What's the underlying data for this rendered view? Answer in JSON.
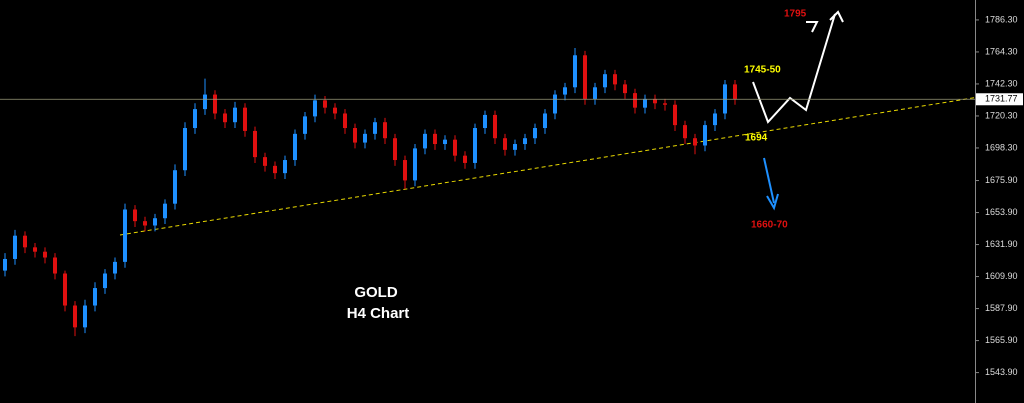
{
  "chart_data": {
    "type": "candlestick",
    "title": "GOLD",
    "subtitle": "H4 Chart",
    "up_color": "#1e90ff",
    "down_color": "#e01010",
    "open": [
      1614,
      1622,
      1638,
      1630,
      1627,
      1623,
      1612,
      1590,
      1575,
      1590,
      1602,
      1612,
      1620,
      1656,
      1648,
      1645,
      1650,
      1660,
      1683,
      1712,
      1725,
      1735,
      1722,
      1716,
      1726,
      1710,
      1692,
      1686,
      1681,
      1690,
      1708,
      1720,
      1731,
      1726,
      1722,
      1712,
      1702,
      1708,
      1716,
      1705,
      1690,
      1676,
      1698,
      1708,
      1701,
      1704,
      1693,
      1688,
      1712,
      1721,
      1705,
      1697,
      1701,
      1705,
      1712,
      1722,
      1735,
      1740,
      1762,
      1732,
      1740,
      1749,
      1742,
      1736,
      1726,
      1732,
      1729,
      1728,
      1714,
      1705,
      1700,
      1714,
      1722,
      1742
    ],
    "high": [
      1626,
      1642,
      1641,
      1633,
      1630,
      1626,
      1614,
      1593,
      1594,
      1606,
      1615,
      1623,
      1660,
      1659,
      1651,
      1653,
      1663,
      1687,
      1716,
      1729,
      1746,
      1738,
      1725,
      1730,
      1729,
      1713,
      1695,
      1689,
      1693,
      1711,
      1723,
      1735,
      1734,
      1729,
      1725,
      1715,
      1711,
      1719,
      1719,
      1708,
      1693,
      1701,
      1711,
      1711,
      1707,
      1707,
      1696,
      1715,
      1724,
      1724,
      1708,
      1704,
      1708,
      1715,
      1725,
      1738,
      1743,
      1767,
      1765,
      1743,
      1752,
      1752,
      1745,
      1739,
      1735,
      1735,
      1732,
      1731,
      1717,
      1708,
      1717,
      1725,
      1745,
      1745
    ],
    "low": [
      1610,
      1618,
      1626,
      1623,
      1619,
      1608,
      1586,
      1569,
      1571,
      1586,
      1598,
      1608,
      1616,
      1644,
      1641,
      1641,
      1646,
      1656,
      1679,
      1708,
      1721,
      1718,
      1712,
      1712,
      1706,
      1688,
      1682,
      1677,
      1677,
      1686,
      1704,
      1716,
      1722,
      1718,
      1708,
      1698,
      1698,
      1704,
      1701,
      1686,
      1670,
      1672,
      1694,
      1697,
      1697,
      1689,
      1684,
      1684,
      1708,
      1701,
      1693,
      1693,
      1697,
      1701,
      1708,
      1718,
      1731,
      1736,
      1728,
      1728,
      1736,
      1738,
      1732,
      1722,
      1722,
      1725,
      1724,
      1710,
      1701,
      1694,
      1696,
      1710,
      1718,
      1728
    ],
    "close": [
      1622,
      1638,
      1630,
      1627,
      1623,
      1612,
      1590,
      1575,
      1590,
      1602,
      1612,
      1620,
      1656,
      1648,
      1645,
      1650,
      1660,
      1683,
      1712,
      1725,
      1735,
      1722,
      1716,
      1726,
      1710,
      1692,
      1686,
      1681,
      1690,
      1708,
      1720,
      1731,
      1726,
      1722,
      1712,
      1702,
      1708,
      1716,
      1705,
      1690,
      1676,
      1698,
      1708,
      1701,
      1704,
      1693,
      1688,
      1712,
      1721,
      1705,
      1697,
      1701,
      1705,
      1712,
      1722,
      1735,
      1740,
      1762,
      1732,
      1740,
      1749,
      1742,
      1736,
      1726,
      1732,
      1729,
      1728,
      1714,
      1705,
      1700,
      1714,
      1722,
      1742,
      1732
    ],
    "ylim": [
      1523,
      1800
    ],
    "yticks": [
      {
        "value": 1786.3,
        "label": "1786.30"
      },
      {
        "value": 1764.3,
        "label": "1764.30"
      },
      {
        "value": 1742.3,
        "label": "1742.30"
      },
      {
        "value": 1720.3,
        "label": "1720.30"
      },
      {
        "value": 1698.3,
        "label": "1698.30"
      },
      {
        "value": 1675.9,
        "label": "1675.90"
      },
      {
        "value": 1653.9,
        "label": "1653.90"
      },
      {
        "value": 1631.9,
        "label": "1631.90"
      },
      {
        "value": 1609.9,
        "label": "1609.90"
      },
      {
        "value": 1587.9,
        "label": "1587.90"
      },
      {
        "value": 1565.9,
        "label": "1565.90"
      },
      {
        "value": 1543.9,
        "label": "1543.90"
      }
    ],
    "current_price": {
      "value": 1731.77,
      "label": "1731.77"
    },
    "annotations": [
      {
        "text": "1795",
        "color": "#e01010"
      },
      {
        "text": "1745-50",
        "color": "#ffff00"
      },
      {
        "text": "1694",
        "color": "#ffff00"
      },
      {
        "text": "1660-70",
        "color": "#e01010"
      }
    ]
  }
}
